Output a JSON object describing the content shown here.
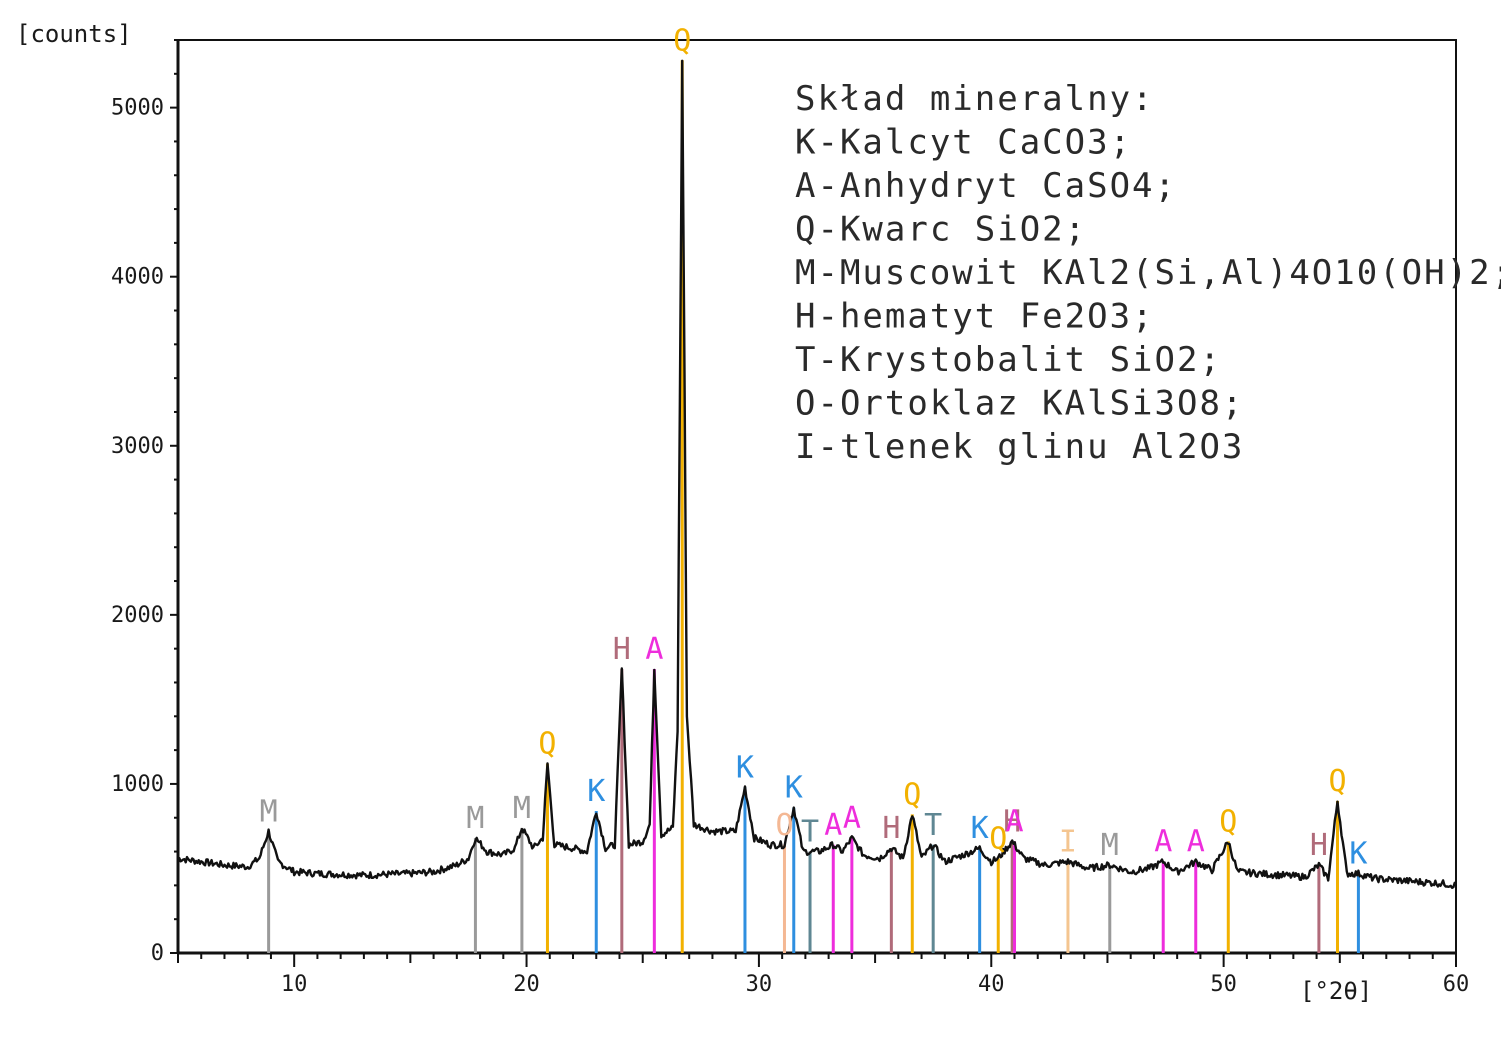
{
  "chart_data": {
    "type": "line",
    "title": "",
    "xlabel": "[°2θ]",
    "ylabel": "[counts]",
    "xlim": [
      5,
      60
    ],
    "ylim": [
      0,
      5400
    ],
    "x_ticks": [
      10,
      20,
      30,
      40,
      50,
      60
    ],
    "y_ticks": [
      0,
      1000,
      2000,
      3000,
      4000,
      5000
    ],
    "x_tick_labels": [
      "10",
      "20",
      "30",
      "40",
      "50",
      "60"
    ],
    "y_tick_labels": [
      "0",
      "1000",
      "2000",
      "3000",
      "4000",
      "5000"
    ],
    "grid": false,
    "legend_position": "top-right",
    "legend": [
      "Skład mineralny:",
      "K-Kalcyt CaCO3;",
      "A-Anhydryt CaSO4;",
      "Q-Kwarc SiO2;",
      "M-Muscowit KAl2(Si,Al)4O10(OH)2;",
      "H-hematyt Fe2O3;",
      "T-Krystobalit SiO2;",
      "O-Ortoklaz KAlSi3O8;",
      "I-tlenek glinu Al2O3"
    ],
    "phase_colors": {
      "M": "#9a9a9a",
      "Q": "#f2b100",
      "K": "#2e8fe0",
      "H": "#b06b7a",
      "A": "#ee2ddc",
      "T": "#5f8793",
      "O": "#f4b894",
      "I": "#f4c590"
    },
    "peaks": [
      {
        "label": "M",
        "x": 8.9,
        "y": 720
      },
      {
        "label": "M",
        "x": 17.8,
        "y": 680
      },
      {
        "label": "M",
        "x": 19.8,
        "y": 740
      },
      {
        "label": "Q",
        "x": 20.9,
        "y": 1120
      },
      {
        "label": "K",
        "x": 23.0,
        "y": 840
      },
      {
        "label": "H",
        "x": 24.1,
        "y": 1680
      },
      {
        "label": "A",
        "x": 25.5,
        "y": 1680
      },
      {
        "label": "Q",
        "x": 26.7,
        "y": 5280
      },
      {
        "label": "K",
        "x": 29.4,
        "y": 980
      },
      {
        "label": "O",
        "x": 31.1,
        "y": 640
      },
      {
        "label": "K",
        "x": 31.5,
        "y": 860
      },
      {
        "label": "T",
        "x": 32.2,
        "y": 600
      },
      {
        "label": "A",
        "x": 33.2,
        "y": 640
      },
      {
        "label": "A",
        "x": 34.0,
        "y": 680
      },
      {
        "label": "H",
        "x": 35.7,
        "y": 620
      },
      {
        "label": "Q",
        "x": 36.6,
        "y": 820
      },
      {
        "label": "T",
        "x": 37.5,
        "y": 640
      },
      {
        "label": "K",
        "x": 39.5,
        "y": 620
      },
      {
        "label": "Q",
        "x": 40.3,
        "y": 560
      },
      {
        "label": "H",
        "x": 40.9,
        "y": 660
      },
      {
        "label": "A",
        "x": 41.0,
        "y": 660
      },
      {
        "label": "I",
        "x": 43.3,
        "y": 540
      },
      {
        "label": "M",
        "x": 45.1,
        "y": 520
      },
      {
        "label": "A",
        "x": 47.4,
        "y": 540
      },
      {
        "label": "A",
        "x": 48.8,
        "y": 540
      },
      {
        "label": "Q",
        "x": 50.2,
        "y": 660
      },
      {
        "label": "H",
        "x": 54.1,
        "y": 520
      },
      {
        "label": "Q",
        "x": 54.9,
        "y": 900
      },
      {
        "label": "K",
        "x": 55.8,
        "y": 470
      }
    ],
    "series": [
      {
        "x": [
          5,
          6,
          7,
          8,
          8.5,
          8.9,
          9.3,
          10,
          11,
          12,
          13,
          14,
          15,
          16,
          17,
          17.5,
          17.8,
          18.3,
          19,
          19.5,
          19.8,
          20.3,
          20.7,
          20.9,
          21.2,
          22,
          22.6,
          23.0,
          23.4,
          23.8,
          24.1,
          24.4,
          25.0,
          25.3,
          25.5,
          25.8,
          26.3,
          26.5,
          26.7,
          26.9,
          27.2,
          28,
          29.0,
          29.4,
          29.8,
          30.5,
          31.1,
          31.5,
          31.9,
          32.2,
          32.6,
          33.2,
          33.6,
          34.0,
          34.5,
          35.2,
          35.7,
          36.2,
          36.6,
          37.0,
          37.5,
          38.0,
          38.8,
          39.5,
          40.0,
          40.3,
          40.9,
          41.4,
          42.3,
          43.3,
          44.2,
          45.1,
          46.0,
          46.8,
          47.4,
          48.0,
          48.8,
          49.5,
          50.2,
          50.6,
          51.5,
          52.5,
          53.5,
          54.1,
          54.5,
          54.9,
          55.3,
          55.8,
          56.5,
          57.5,
          58.5,
          59.5,
          60
        ],
        "y": [
          560,
          540,
          520,
          510,
          560,
          720,
          540,
          480,
          470,
          465,
          460,
          465,
          470,
          480,
          520,
          560,
          680,
          600,
          580,
          620,
          740,
          620,
          680,
          1120,
          640,
          620,
          600,
          840,
          620,
          640,
          1680,
          640,
          660,
          760,
          1680,
          700,
          740,
          1320,
          5280,
          1400,
          760,
          720,
          720,
          980,
          680,
          640,
          640,
          860,
          600,
          600,
          600,
          640,
          600,
          680,
          580,
          560,
          620,
          560,
          820,
          560,
          640,
          540,
          580,
          620,
          540,
          560,
          660,
          560,
          520,
          540,
          500,
          520,
          480,
          500,
          540,
          480,
          540,
          490,
          660,
          480,
          470,
          460,
          450,
          520,
          440,
          900,
          470,
          470,
          440,
          430,
          420,
          410,
          400
        ]
      }
    ]
  }
}
